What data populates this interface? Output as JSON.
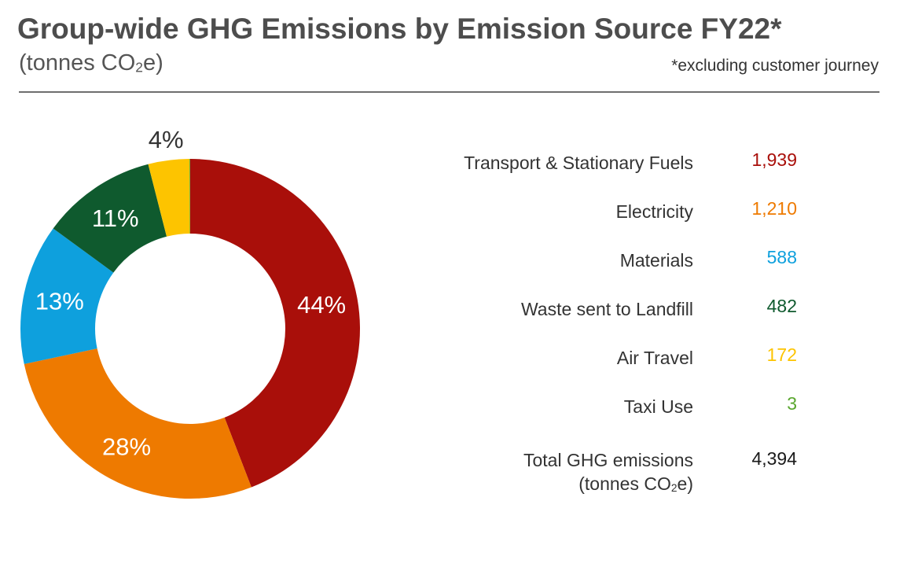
{
  "header": {
    "title": "Group-wide GHG Emissions by Emission Source FY22*",
    "subtitle_pre": "(tonnes CO",
    "subtitle_sub": "2",
    "subtitle_post": "e)",
    "note": "*excluding customer journey"
  },
  "chart_data": {
    "type": "pie",
    "style": "donut",
    "unit": "tonnes CO2e",
    "categories": [
      "Transport & Stationary Fuels",
      "Electricity",
      "Materials",
      "Waste sent to Landfill",
      "Air Travel",
      "Taxi Use"
    ],
    "values": [
      1939,
      1210,
      588,
      482,
      172,
      3
    ],
    "display_values": [
      "1,939",
      "1,210",
      "588",
      "482",
      "172",
      "3"
    ],
    "percent_labels": [
      "44%",
      "28%",
      "13%",
      "11%",
      "4%",
      ""
    ],
    "colors": [
      "#a90f0a",
      "#ee7a00",
      "#0ea0dd",
      "#0f5a2e",
      "#fdc400",
      "#5aa72f"
    ],
    "total": {
      "label_line1": "Total GHG  emissions",
      "label_line2_pre": "(tonnes CO",
      "label_line2_sub": "2",
      "label_line2_post": "e)",
      "value": "4,394"
    }
  }
}
